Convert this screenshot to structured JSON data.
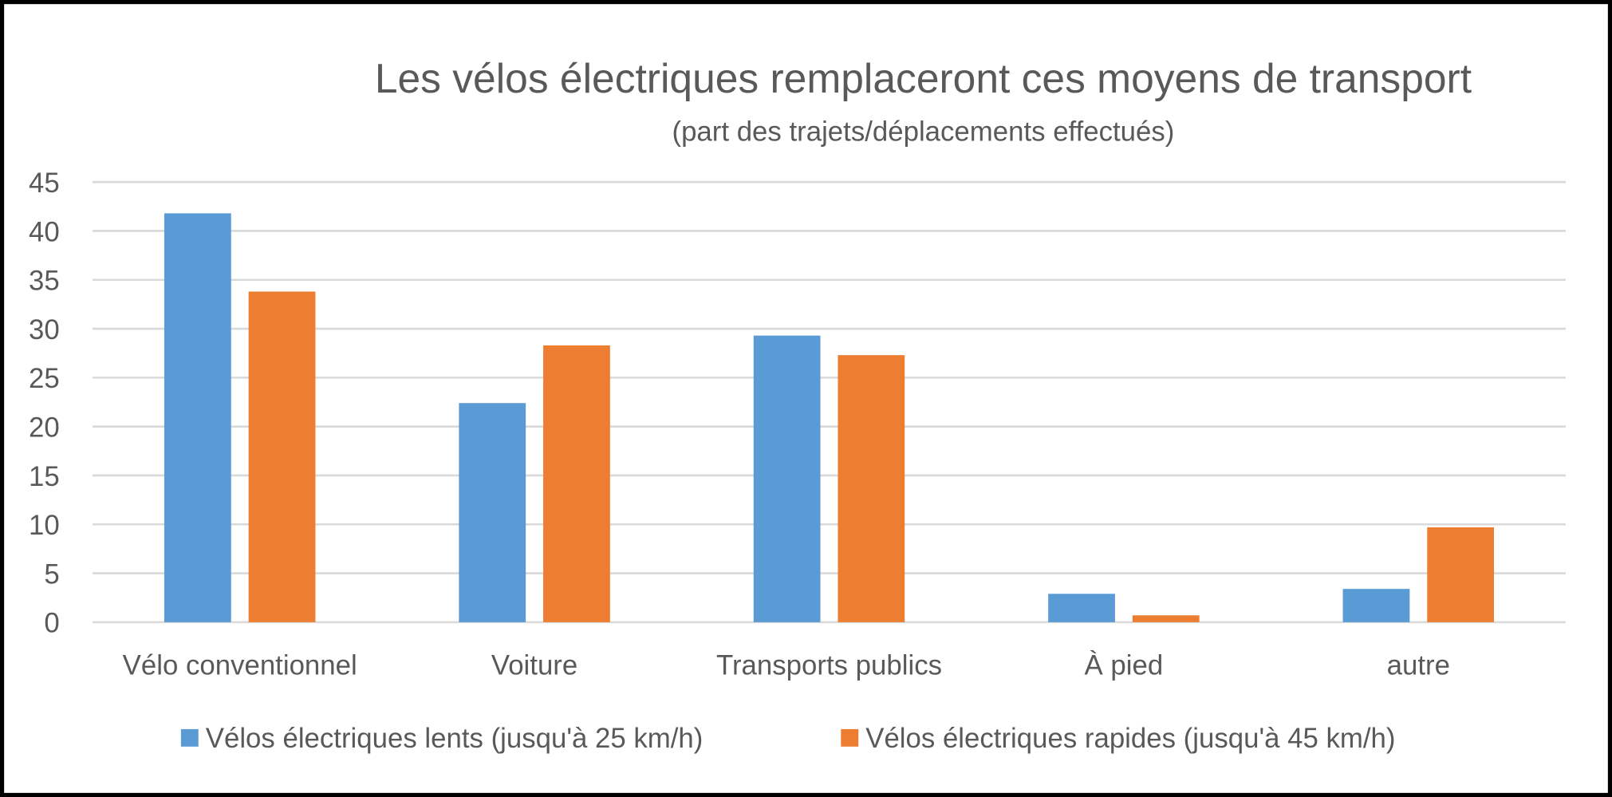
{
  "chart_data": {
    "type": "bar",
    "title": "Les vélos électriques remplaceront ces moyens de transport",
    "subtitle": "(part des trajets/déplacements effectués)",
    "xlabel": "",
    "ylabel": "",
    "ylim": [
      0,
      45
    ],
    "yticks": [
      0,
      5,
      10,
      15,
      20,
      25,
      30,
      35,
      40,
      45
    ],
    "grid": true,
    "legend_position": "bottom",
    "categories": [
      "Vélo conventionnel",
      "Voiture",
      "Transports publics",
      "À pied",
      "autre"
    ],
    "series": [
      {
        "name": "Vélos électriques lents (jusqu'à 25 km/h)",
        "color": "#5B9BD5",
        "values": [
          41.8,
          22.4,
          29.3,
          2.9,
          3.4
        ]
      },
      {
        "name": "Vélos électriques rapides (jusqu'à 45 km/h)",
        "color": "#ED7D31",
        "values": [
          33.8,
          28.3,
          27.3,
          0.7,
          9.7
        ]
      }
    ]
  }
}
